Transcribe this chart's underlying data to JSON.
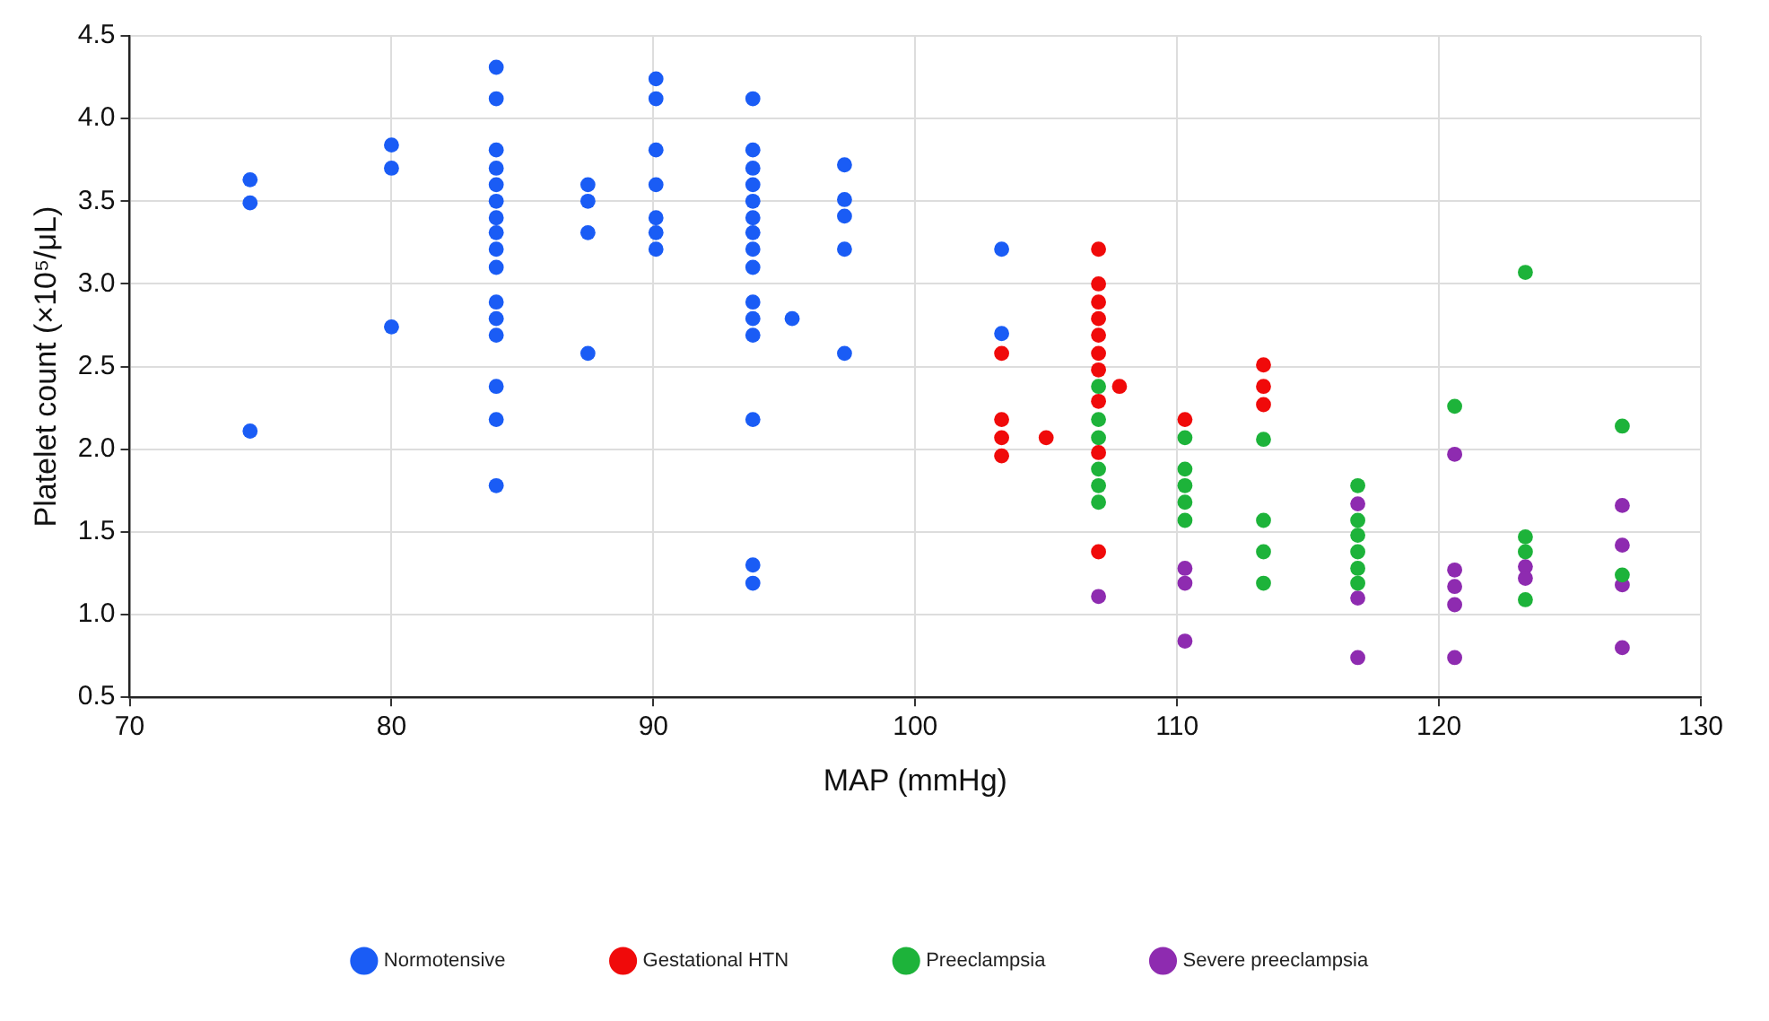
{
  "chart_data": {
    "type": "scatter",
    "xlabel": "MAP (mmHg)",
    "ylabel": "Platelet count (×10⁵/μL)",
    "xlim": [
      70,
      130
    ],
    "xticks": [
      70,
      80,
      90,
      100,
      110,
      120,
      130
    ],
    "ylim": [
      0.5,
      4.5
    ],
    "yticks": [
      0.5,
      {
        "value": 1,
        "label": "1.0"
      },
      1.5,
      {
        "value": 2,
        "label": "2.0"
      },
      2.5,
      {
        "value": 3,
        "label": "3.0"
      },
      3.5,
      {
        "value": 4,
        "label": "4.0"
      },
      4.5
    ],
    "grid": true,
    "legend": "bottom",
    "marker": "circle",
    "series": [
      {
        "name": "Normotensive",
        "color": "#1a5cf5",
        "x": [
          74.6,
          74.6,
          74.6,
          80,
          80,
          80,
          84,
          84,
          84,
          84,
          84,
          84,
          84,
          84,
          84,
          84,
          84,
          84,
          84,
          84,
          84,
          84,
          87.5,
          87.5,
          87.5,
          87.5,
          90.1,
          90.1,
          90.1,
          90.1,
          90.1,
          90.1,
          90.1,
          93.8,
          93.8,
          93.8,
          93.8,
          93.8,
          93.8,
          93.8,
          93.8,
          93.8,
          93.8,
          93.8,
          93.8,
          93.8,
          93.8,
          93.8,
          95.3,
          97.3,
          97.3,
          97.3,
          97.3,
          97.3,
          103.3,
          103.3
        ],
        "values": [
          3.63,
          3.49,
          2.11,
          3.84,
          3.7,
          2.74,
          4.31,
          4.12,
          3.81,
          3.7,
          3.6,
          3.5,
          3.4,
          3.31,
          3.21,
          3.1,
          2.89,
          2.79,
          2.69,
          2.38,
          2.18,
          1.78,
          3.6,
          3.5,
          3.31,
          2.58,
          4.24,
          4.12,
          3.81,
          3.6,
          3.4,
          3.31,
          3.21,
          4.12,
          3.81,
          3.7,
          3.6,
          3.5,
          3.4,
          3.31,
          3.21,
          3.1,
          2.89,
          2.79,
          2.69,
          2.18,
          1.3,
          1.19,
          2.79,
          3.72,
          3.51,
          3.41,
          3.21,
          2.58,
          3.21,
          2.7
        ]
      },
      {
        "name": "Gestational HTN",
        "color": "#f00a0a",
        "x": [
          103.3,
          103.3,
          103.3,
          103.3,
          105,
          107,
          107,
          107,
          107,
          107,
          107,
          107,
          107,
          107,
          107,
          107.8,
          110.3,
          113.3,
          113.3,
          113.3
        ],
        "values": [
          2.58,
          2.18,
          2.07,
          1.96,
          2.07,
          3.21,
          3.0,
          2.89,
          2.79,
          2.69,
          2.58,
          2.48,
          2.29,
          1.98,
          1.38,
          2.38,
          2.18,
          2.51,
          2.38,
          2.27
        ]
      },
      {
        "name": "Preeclampsia",
        "color": "#1db33a",
        "x": [
          107,
          107,
          107,
          107,
          107,
          107,
          110.3,
          110.3,
          110.3,
          110.3,
          110.3,
          113.3,
          113.3,
          113.3,
          113.3,
          116.9,
          116.9,
          116.9,
          116.9,
          116.9,
          116.9,
          120.6,
          123.3,
          123.3,
          123.3,
          123.3,
          127,
          127
        ],
        "values": [
          2.38,
          2.18,
          2.07,
          1.88,
          1.78,
          1.68,
          2.07,
          1.88,
          1.78,
          1.68,
          1.57,
          2.06,
          1.57,
          1.38,
          1.19,
          1.78,
          1.57,
          1.48,
          1.38,
          1.28,
          1.19,
          2.26,
          3.07,
          1.47,
          1.38,
          1.09,
          2.14,
          1.24
        ]
      },
      {
        "name": "Severe preeclampsia",
        "color": "#8e2bb0",
        "x": [
          107,
          110.3,
          110.3,
          110.3,
          116.9,
          116.9,
          116.9,
          120.6,
          120.6,
          120.6,
          120.6,
          120.6,
          123.3,
          123.3,
          127,
          127,
          127,
          127
        ],
        "values": [
          1.11,
          1.28,
          1.19,
          0.84,
          1.67,
          1.1,
          0.74,
          1.97,
          1.27,
          1.17,
          1.06,
          0.74,
          1.29,
          1.22,
          1.66,
          1.42,
          1.18,
          0.8
        ]
      }
    ]
  }
}
